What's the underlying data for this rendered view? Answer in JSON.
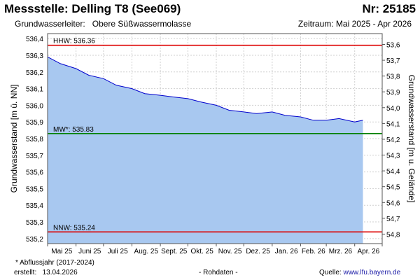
{
  "header": {
    "title": "Messstelle: Delling T8 (See069)",
    "number": "Nr: 25185",
    "aquifer_label": "Grundwasserleiter:",
    "aquifer_value": "Obere Süßwassermolasse",
    "period": "Zeitraum: Mai 2025 - Apr 2026"
  },
  "footer": {
    "note": "* Abflussjahr (2017-2024)",
    "created_label": "erstellt:",
    "created_date": "13.04.2026",
    "raw_data": "- Rohdaten -",
    "source_label": "Quelle:",
    "source_url": "www.lfu.bayern.de"
  },
  "chart_data": {
    "type": "area",
    "ylabel": "Grundwasserstand [m ü. NN]",
    "ylabel_right": "Grundwasserstand [m u. Gelände]",
    "ylim": [
      536.17,
      536.43
    ],
    "y_ticks": [
      "536,4",
      "536,3",
      "536,2",
      "536,1",
      "536,0",
      "535,9",
      "535,8",
      "535,7",
      "535,6",
      "535,5",
      "535,4",
      "535,3",
      "535,2"
    ],
    "y_ticks_right": [
      "53,6",
      "53,7",
      "53,8",
      "53,9",
      "54,0",
      "54,1",
      "54,2",
      "54,3",
      "54,4",
      "54,5",
      "54,6",
      "54,7",
      "54,8"
    ],
    "x_ticks": [
      "Mai 25",
      "Juni 25",
      "Juli 25",
      "Aug. 25",
      "Sept. 25",
      "Okt. 25",
      "Nov. 25",
      "Dez. 25",
      "Jan. 26",
      "Feb. 26",
      "Mrz. 26",
      "Apr. 26"
    ],
    "grid": true,
    "fill_color": "#a8c8f0",
    "line_color": "#0000cc",
    "reference_lines": [
      {
        "label": "HHW: 536.36",
        "value": 536.36,
        "color": "#dd0000"
      },
      {
        "label": "MW*: 535.83",
        "value": 535.83,
        "color": "#008000"
      },
      {
        "label": "NNW: 535.24",
        "value": 535.24,
        "color": "#dd0000"
      }
    ],
    "series": [
      {
        "x": [
          "2025-05-01",
          "2025-05-15",
          "2025-06-01",
          "2025-06-15",
          "2025-07-01",
          "2025-07-15",
          "2025-08-01",
          "2025-08-15",
          "2025-09-01",
          "2025-09-15",
          "2025-10-01",
          "2025-10-15",
          "2025-11-01",
          "2025-11-15",
          "2025-12-01",
          "2025-12-15",
          "2026-01-01",
          "2026-01-15",
          "2026-02-01",
          "2026-02-15",
          "2026-03-01",
          "2026-03-15",
          "2026-04-01",
          "2026-04-10"
        ],
        "values": [
          536.29,
          536.25,
          536.22,
          536.18,
          536.16,
          536.12,
          536.1,
          536.07,
          536.06,
          536.05,
          536.04,
          536.02,
          536.0,
          535.97,
          535.96,
          535.95,
          535.96,
          535.94,
          535.93,
          535.91,
          535.91,
          535.92,
          535.9,
          535.91
        ]
      }
    ]
  }
}
